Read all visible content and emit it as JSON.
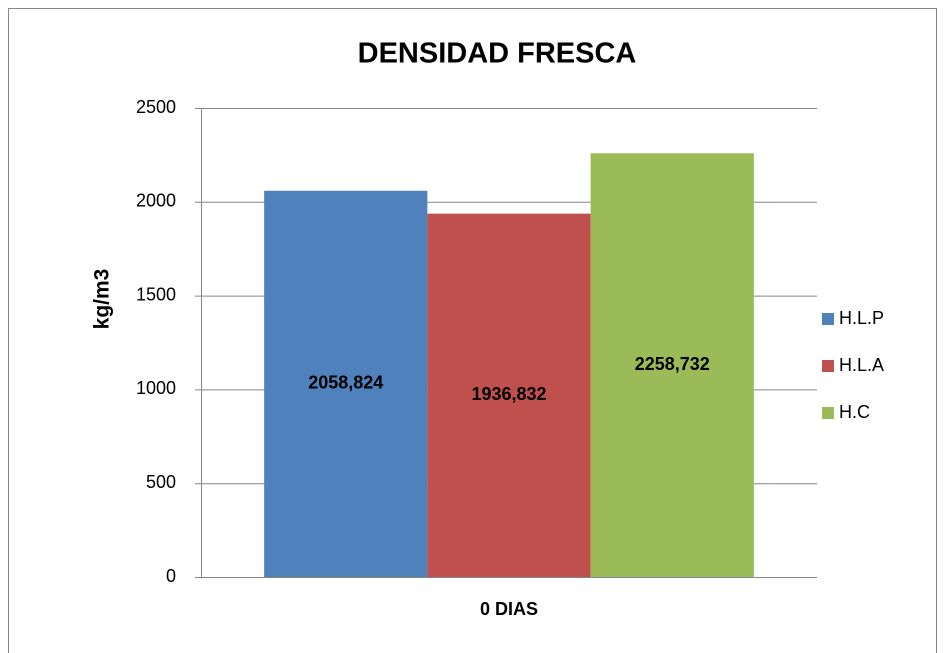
{
  "chart_data": {
    "type": "bar",
    "title": "DENSIDAD FRESCA",
    "y_label": "kg/m3",
    "categories": [
      "0 DIAS"
    ],
    "series": [
      {
        "name": "H.L.P",
        "color": "#4f81bd",
        "values": [
          2058.824
        ],
        "value_labels": [
          "2058,824"
        ]
      },
      {
        "name": "H.L.A",
        "color": "#c0504d",
        "values": [
          1936.832
        ],
        "value_labels": [
          "1936,832"
        ]
      },
      {
        "name": "H.C",
        "color": "#9bbb59",
        "values": [
          2258.732
        ],
        "value_labels": [
          "2258,732"
        ]
      }
    ],
    "ylim": [
      0,
      2500
    ],
    "yticks": [
      0,
      500,
      1000,
      1500,
      2000,
      2500
    ],
    "grid": true,
    "legend": "right"
  }
}
